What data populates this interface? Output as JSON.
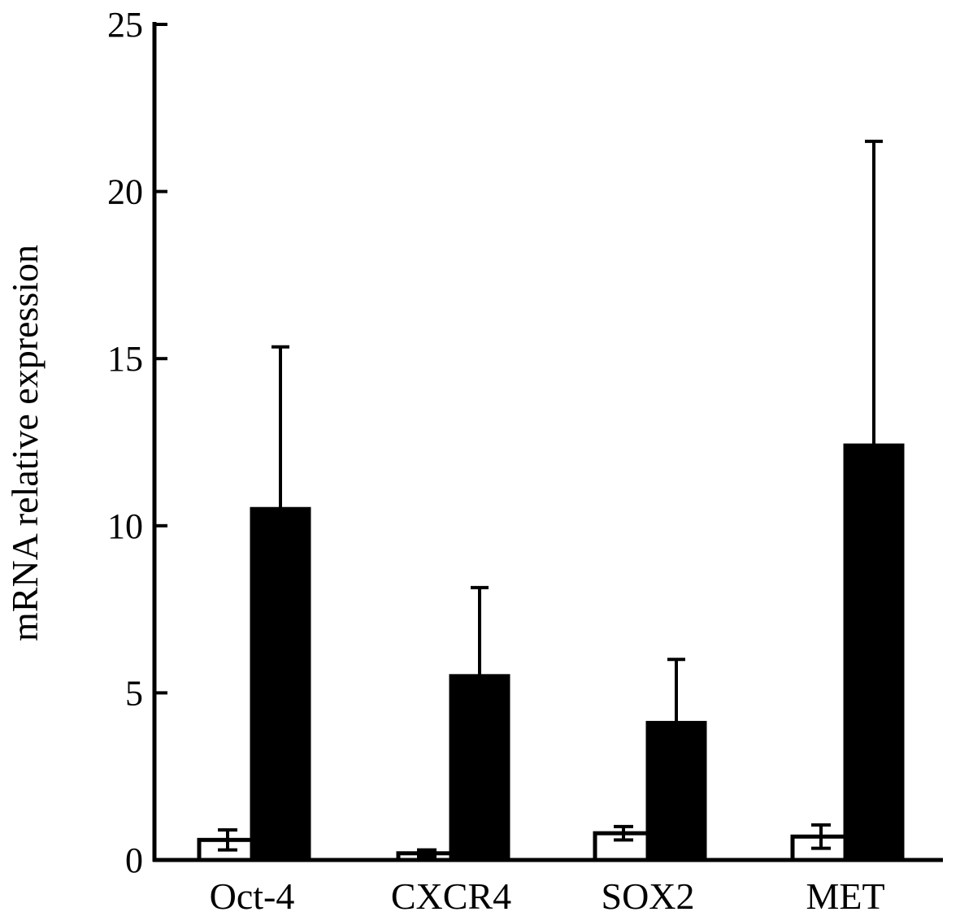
{
  "chart_data": {
    "type": "bar",
    "title": "",
    "xlabel": "",
    "ylabel": "mRNA relative expression",
    "ylim": [
      0,
      25
    ],
    "yticks": [
      "0",
      "5",
      "10",
      "15",
      "20",
      "25"
    ],
    "categories": [
      "Oct-4",
      "CXCR4",
      "SOX2",
      "MET"
    ],
    "series": [
      {
        "fill": "#ffffff",
        "values": [
          0.6,
          0.2,
          0.8,
          0.7
        ],
        "errors": [
          0.3,
          0.1,
          0.2,
          0.35
        ]
      },
      {
        "fill": "#000000",
        "values": [
          10.5,
          5.5,
          4.1,
          12.4
        ],
        "errors": [
          4.85,
          2.65,
          1.9,
          9.1
        ]
      }
    ],
    "grid": false,
    "legend": "none"
  }
}
